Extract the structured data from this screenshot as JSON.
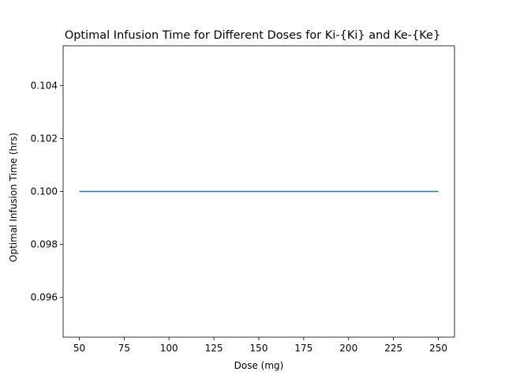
{
  "chart_data": {
    "type": "line",
    "title": "Optimal Infusion Time for Different Doses for Ki-{Ki} and Ke-{Ke}",
    "xlabel": "Dose (mg)",
    "ylabel": "Optimal Infusion Time (hrs)",
    "xlim": [
      41,
      259
    ],
    "ylim": [
      0.0945,
      0.1055
    ],
    "xticks": [
      50,
      75,
      100,
      125,
      150,
      175,
      200,
      225,
      250
    ],
    "yticks": [
      0.096,
      0.098,
      0.1,
      0.102,
      0.104
    ],
    "ytick_labels": [
      "0.096",
      "0.098",
      "0.100",
      "0.102",
      "0.104"
    ],
    "grid": false,
    "series": [
      {
        "color": "#1f77b4",
        "x": [
          50,
          250
        ],
        "y": [
          0.1,
          0.1
        ]
      }
    ]
  }
}
